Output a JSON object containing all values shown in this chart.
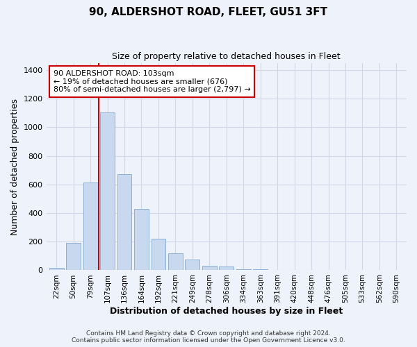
{
  "title": "90, ALDERSHOT ROAD, FLEET, GU51 3FT",
  "subtitle": "Size of property relative to detached houses in Fleet",
  "xlabel": "Distribution of detached houses by size in Fleet",
  "ylabel": "Number of detached properties",
  "bar_color": "#c8d8ee",
  "bar_edge_color": "#8db0d4",
  "vline_color": "#cc0000",
  "vline_idx": 3,
  "categories": [
    "22sqm",
    "50sqm",
    "79sqm",
    "107sqm",
    "136sqm",
    "164sqm",
    "192sqm",
    "221sqm",
    "249sqm",
    "278sqm",
    "306sqm",
    "334sqm",
    "363sqm",
    "391sqm",
    "420sqm",
    "448sqm",
    "476sqm",
    "505sqm",
    "533sqm",
    "562sqm",
    "590sqm"
  ],
  "bar_heights": [
    15,
    190,
    615,
    1105,
    670,
    430,
    220,
    120,
    75,
    30,
    25,
    5,
    5,
    0,
    0,
    0,
    0,
    0,
    0,
    0,
    0
  ],
  "ylim": [
    0,
    1450
  ],
  "yticks": [
    0,
    200,
    400,
    600,
    800,
    1000,
    1200,
    1400
  ],
  "annotation_lines": [
    "90 ALDERSHOT ROAD: 103sqm",
    "← 19% of detached houses are smaller (676)",
    "80% of semi-detached houses are larger (2,797) →"
  ],
  "annotation_box_color": "#ffffff",
  "annotation_box_edge_color": "#cc0000",
  "footer_line1": "Contains HM Land Registry data © Crown copyright and database right 2024.",
  "footer_line2": "Contains public sector information licensed under the Open Government Licence v3.0.",
  "background_color": "#eef2fb",
  "plot_bg_color": "#eef2fb",
  "grid_color": "#d0d8e8"
}
